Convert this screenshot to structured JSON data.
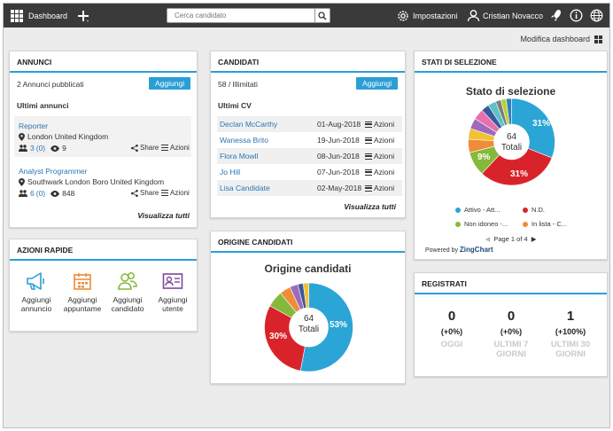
{
  "topbar": {
    "dashboard": "Dashboard",
    "search_placeholder": "Cerca candidato",
    "settings": "Impostazioni",
    "user": "Cristian Novacco"
  },
  "subbar": {
    "edit_dashboard": "Modifica dashboard"
  },
  "annunci": {
    "title": "ANNUNCI",
    "published": "2 Annunci pubblicati",
    "add": "Aggiungi",
    "recent_title": "Ultimi annunci",
    "items": [
      {
        "title": "Reporter",
        "location": "London United Kingdom",
        "candidates": "3",
        "new": "(0)",
        "views": "9",
        "share": "Share",
        "actions": "Azioni"
      },
      {
        "title": "Analyst Programmer",
        "location": "Southwark London Boro United Kingdom",
        "candidates": "6",
        "new": "(0)",
        "views": "848",
        "share": "Share",
        "actions": "Azioni"
      }
    ],
    "view_all": "Visualizza tutti"
  },
  "candidati": {
    "title": "CANDIDATI",
    "count": "58 / Illimitati",
    "add": "Aggiungi",
    "recent_title": "Ultimi CV",
    "items": [
      {
        "name": "Declan McCarthy",
        "date": "01-Aug-2018",
        "actions": "Azioni"
      },
      {
        "name": "Wanessa Brito",
        "date": "19-Jun-2018",
        "actions": "Azioni"
      },
      {
        "name": "Flora Mowll",
        "date": "08-Jun-2018",
        "actions": "Azioni"
      },
      {
        "name": "Jo Hill",
        "date": "07-Jun-2018",
        "actions": "Azioni"
      },
      {
        "name": "Lisa Candidate",
        "date": "02-May-2018",
        "actions": "Azioni"
      }
    ],
    "view_all": "Visualizza tutti"
  },
  "stati": {
    "title": "STATI DI SELEZIONE",
    "chart_title": "Stato di selezione",
    "total_value": "64",
    "total_label": "Totali",
    "pct_a": "31%",
    "pct_b": "31%",
    "pct_c": "9%",
    "legend": [
      "Attivo - Att...",
      "N.D.",
      "Non idoneo -...",
      "In lista - C..."
    ],
    "page": "Page 1 of 4",
    "powered": "Powered by",
    "brand": "ZingChart"
  },
  "azioni": {
    "title": "AZIONI RAPIDE",
    "items": [
      {
        "line1": "Aggiungi",
        "line2": "annuncio"
      },
      {
        "line1": "Aggiungi",
        "line2": "appuntame"
      },
      {
        "line1": "Aggiungi",
        "line2": "candidato"
      },
      {
        "line1": "Aggiungi",
        "line2": "utente"
      }
    ]
  },
  "origine": {
    "title": "ORIGINE CANDIDATI",
    "chart_title": "Origine candidati",
    "total_value": "64",
    "total_label": "Totali",
    "pct_a": "53%",
    "pct_b": "30%"
  },
  "registrati": {
    "title": "REGISTRATI",
    "cols": [
      {
        "value": "0",
        "pct": "(+0%)",
        "label1": "OGGI",
        "label2": ""
      },
      {
        "value": "0",
        "pct": "(+0%)",
        "label1": "ULTIMI 7",
        "label2": "GIORNI"
      },
      {
        "value": "1",
        "pct": "(+100%)",
        "label1": "ULTIMI 30",
        "label2": "GIORNI"
      }
    ]
  },
  "colors": {
    "accent": "#2a9fd6",
    "topbar": "#3a3a3a",
    "pie_blue": "#2aa5d6",
    "pie_red": "#d9232b",
    "pie_green": "#84b93a",
    "pie_orange": "#ef8c3a"
  },
  "chart_data": [
    {
      "type": "pie",
      "title": "Stato di selezione",
      "center_label": "64 Totali",
      "categories": [
        "Attivo - Att...",
        "N.D.",
        "Non idoneo -...",
        "In lista - C...",
        "",
        "",
        "",
        "",
        "",
        "",
        "",
        ""
      ],
      "values": [
        31,
        31,
        9,
        5,
        4,
        4,
        4,
        3,
        3,
        2,
        2,
        2
      ],
      "labels_shown": [
        "31%",
        "31%",
        "9%"
      ],
      "legend_position": "bottom"
    },
    {
      "type": "pie",
      "title": "Origine candidati",
      "center_label": "64 Totali",
      "values": [
        53,
        30,
        6,
        4,
        3,
        2,
        2
      ],
      "labels_shown": [
        "53%",
        "30%"
      ]
    }
  ]
}
